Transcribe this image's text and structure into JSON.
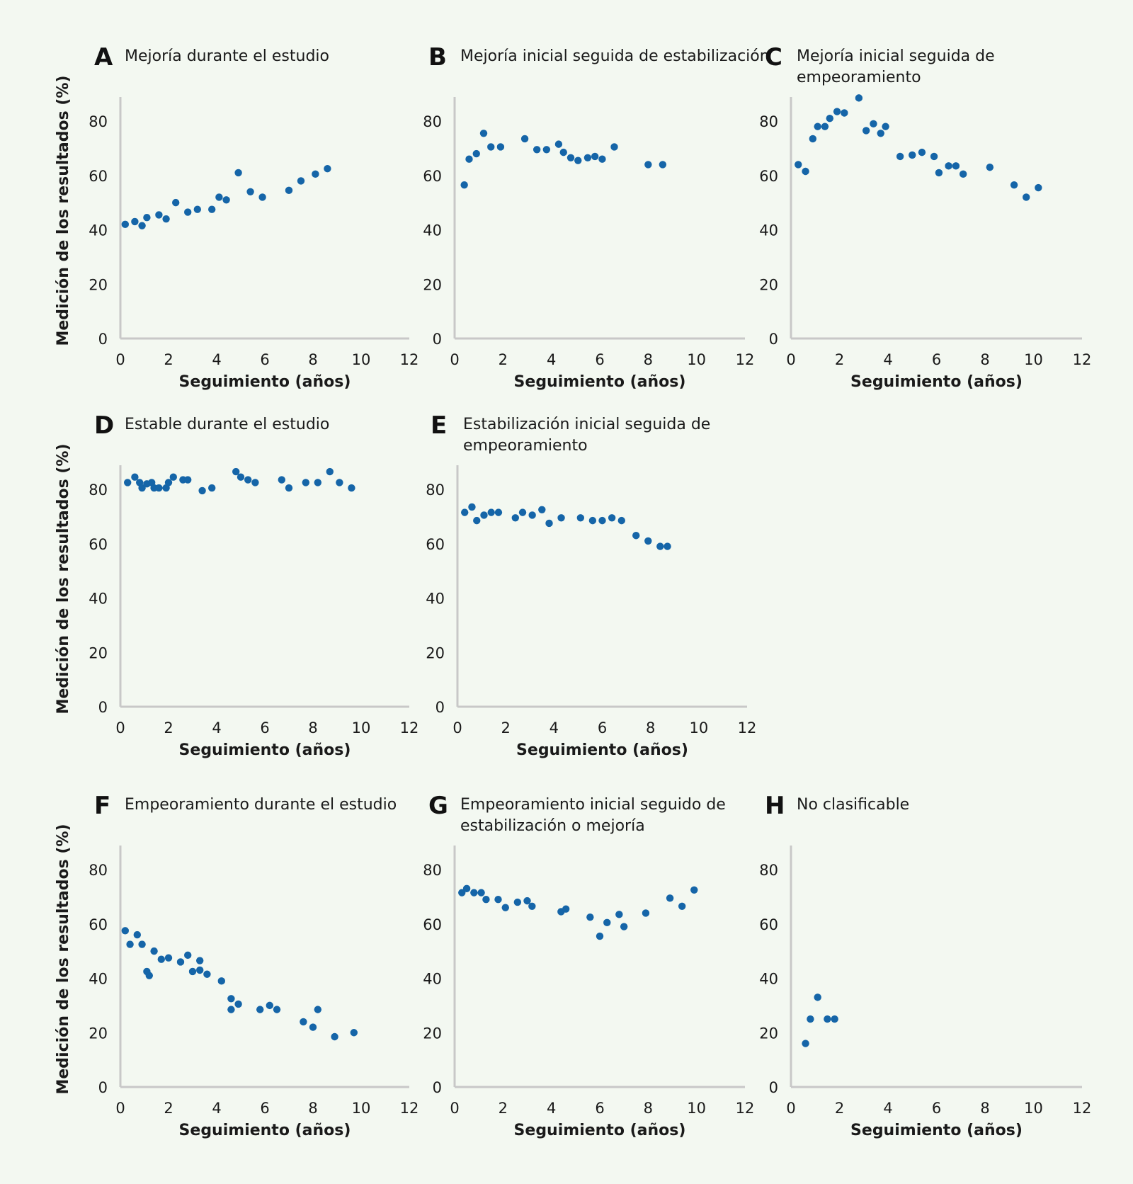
{
  "figure": {
    "background": "#f3f8f1",
    "point_color": "#1565a8"
  },
  "chart_data": [
    {
      "id": "A",
      "letter": "A",
      "type": "scatter",
      "title_lines": [
        "Mejoría durante el estudio"
      ],
      "xlabel": "Seguimiento (años)",
      "ylabel": "Medición de los resultados (%)",
      "xlim": [
        0,
        12
      ],
      "ylim": [
        0,
        88
      ],
      "xticks": [
        0,
        2,
        4,
        6,
        8,
        10,
        12
      ],
      "yticks": [
        0,
        20,
        40,
        60,
        80
      ],
      "points": [
        [
          0.2,
          42
        ],
        [
          0.6,
          43
        ],
        [
          0.9,
          41.5
        ],
        [
          1.1,
          44.5
        ],
        [
          1.6,
          45.5
        ],
        [
          1.9,
          44
        ],
        [
          2.3,
          50
        ],
        [
          2.8,
          46.5
        ],
        [
          3.2,
          47.5
        ],
        [
          3.8,
          47.5
        ],
        [
          4.1,
          52
        ],
        [
          4.4,
          51
        ],
        [
          4.9,
          61
        ],
        [
          5.4,
          54
        ],
        [
          5.9,
          52
        ],
        [
          7.0,
          54.5
        ],
        [
          7.5,
          58
        ],
        [
          8.1,
          60.5
        ],
        [
          8.6,
          62.5
        ]
      ]
    },
    {
      "id": "B",
      "letter": "B",
      "type": "scatter",
      "title_lines": [
        "Mejoría inicial seguida de estabilización"
      ],
      "xlabel": "Seguimiento (años)",
      "ylabel": "",
      "xlim": [
        0,
        12
      ],
      "ylim": [
        0,
        88
      ],
      "xticks": [
        0,
        2,
        4,
        6,
        8,
        10,
        12
      ],
      "yticks": [
        0,
        20,
        40,
        60,
        80
      ],
      "points": [
        [
          0.4,
          56.5
        ],
        [
          0.6,
          66
        ],
        [
          0.9,
          68
        ],
        [
          1.2,
          75.5
        ],
        [
          1.5,
          70.5
        ],
        [
          1.9,
          70.5
        ],
        [
          2.9,
          73.5
        ],
        [
          3.4,
          69.5
        ],
        [
          3.8,
          69.5
        ],
        [
          4.3,
          71.5
        ],
        [
          4.5,
          68.5
        ],
        [
          4.8,
          66.5
        ],
        [
          5.1,
          65.5
        ],
        [
          5.5,
          66.5
        ],
        [
          5.8,
          67
        ],
        [
          6.1,
          66
        ],
        [
          6.6,
          70.5
        ],
        [
          8.0,
          64
        ],
        [
          8.6,
          64
        ]
      ]
    },
    {
      "id": "C",
      "letter": "C",
      "type": "scatter",
      "title_lines": [
        "Mejoría inicial seguida de",
        "empeoramiento"
      ],
      "xlabel": "Seguimiento (años)",
      "ylabel": "",
      "xlim": [
        0,
        12
      ],
      "ylim": [
        0,
        88
      ],
      "xticks": [
        0,
        2,
        4,
        6,
        8,
        10,
        12
      ],
      "yticks": [
        0,
        20,
        40,
        60,
        80
      ],
      "points": [
        [
          0.3,
          64
        ],
        [
          0.6,
          61.5
        ],
        [
          0.9,
          73.5
        ],
        [
          1.1,
          78
        ],
        [
          1.4,
          78
        ],
        [
          1.6,
          81
        ],
        [
          1.9,
          83.5
        ],
        [
          2.2,
          83
        ],
        [
          2.8,
          88.5
        ],
        [
          3.1,
          76.5
        ],
        [
          3.4,
          79
        ],
        [
          3.7,
          75.5
        ],
        [
          3.9,
          78
        ],
        [
          4.5,
          67
        ],
        [
          5.0,
          67.5
        ],
        [
          5.4,
          68.5
        ],
        [
          5.9,
          67
        ],
        [
          6.1,
          61
        ],
        [
          6.5,
          63.5
        ],
        [
          6.8,
          63.5
        ],
        [
          7.1,
          60.5
        ],
        [
          8.2,
          63
        ],
        [
          9.2,
          56.5
        ],
        [
          9.7,
          52
        ],
        [
          10.2,
          55.5
        ]
      ]
    },
    {
      "id": "D",
      "letter": "D",
      "type": "scatter",
      "title_lines": [
        "Estable durante el estudio"
      ],
      "xlabel": "Seguimiento (años)",
      "ylabel": "Medición de los resultados (%)",
      "xlim": [
        0,
        12
      ],
      "ylim": [
        0,
        88
      ],
      "xticks": [
        0,
        2,
        4,
        6,
        8,
        10,
        12
      ],
      "yticks": [
        0,
        20,
        40,
        60,
        80
      ],
      "points": [
        [
          0.3,
          82.5
        ],
        [
          0.6,
          84.5
        ],
        [
          0.8,
          82.5
        ],
        [
          0.9,
          80.5
        ],
        [
          1.1,
          82
        ],
        [
          1.3,
          82.5
        ],
        [
          1.4,
          80.5
        ],
        [
          1.6,
          80.5
        ],
        [
          1.9,
          80.5
        ],
        [
          2.0,
          82.5
        ],
        [
          2.2,
          84.5
        ],
        [
          2.6,
          83.5
        ],
        [
          2.8,
          83.5
        ],
        [
          3.4,
          79.5
        ],
        [
          3.8,
          80.5
        ],
        [
          4.8,
          86.5
        ],
        [
          5.0,
          84.5
        ],
        [
          5.3,
          83.5
        ],
        [
          5.6,
          82.5
        ],
        [
          6.7,
          83.5
        ],
        [
          7.0,
          80.5
        ],
        [
          7.7,
          82.5
        ],
        [
          8.2,
          82.5
        ],
        [
          8.7,
          86.5
        ],
        [
          9.1,
          82.5
        ],
        [
          9.6,
          80.5
        ]
      ]
    },
    {
      "id": "E",
      "letter": "E",
      "type": "scatter",
      "title_lines": [
        "Estabilización inicial seguida de",
        "empeoramiento"
      ],
      "xlabel": "Seguimiento (años)",
      "ylabel": "",
      "xlim": [
        0,
        12
      ],
      "ylim": [
        0,
        88
      ],
      "xticks": [
        0,
        2,
        4,
        6,
        8,
        10,
        12
      ],
      "yticks": [
        0,
        20,
        40,
        60,
        80
      ],
      "points": [
        [
          0.3,
          71.5
        ],
        [
          0.6,
          73.5
        ],
        [
          0.8,
          68.5
        ],
        [
          1.1,
          70.5
        ],
        [
          1.4,
          71.5
        ],
        [
          1.7,
          71.5
        ],
        [
          2.4,
          69.5
        ],
        [
          2.7,
          71.5
        ],
        [
          3.1,
          70.5
        ],
        [
          3.5,
          72.5
        ],
        [
          3.8,
          67.5
        ],
        [
          4.3,
          69.5
        ],
        [
          5.1,
          69.5
        ],
        [
          5.6,
          68.5
        ],
        [
          6.0,
          68.5
        ],
        [
          6.4,
          69.5
        ],
        [
          6.8,
          68.5
        ],
        [
          7.4,
          63
        ],
        [
          7.9,
          61
        ],
        [
          8.4,
          59
        ],
        [
          8.7,
          59
        ]
      ]
    },
    {
      "id": "F",
      "letter": "F",
      "type": "scatter",
      "title_lines": [
        "Empeoramiento durante el estudio"
      ],
      "xlabel": "Seguimiento (años)",
      "ylabel": "Medición de los resultados (%)",
      "xlim": [
        0,
        12
      ],
      "ylim": [
        0,
        88
      ],
      "xticks": [
        0,
        2,
        4,
        6,
        8,
        10,
        12
      ],
      "yticks": [
        0,
        20,
        40,
        60,
        80
      ],
      "points": [
        [
          0.2,
          57.5
        ],
        [
          0.4,
          52.5
        ],
        [
          0.7,
          56
        ],
        [
          0.9,
          52.5
        ],
        [
          1.1,
          42.5
        ],
        [
          1.2,
          41
        ],
        [
          1.4,
          50
        ],
        [
          1.7,
          47
        ],
        [
          2.0,
          47.5
        ],
        [
          2.5,
          46
        ],
        [
          2.8,
          48.5
        ],
        [
          3.0,
          42.5
        ],
        [
          3.3,
          46.5
        ],
        [
          3.3,
          43
        ],
        [
          3.6,
          41.5
        ],
        [
          4.2,
          39
        ],
        [
          4.6,
          32.5
        ],
        [
          4.6,
          28.5
        ],
        [
          4.9,
          30.5
        ],
        [
          5.8,
          28.5
        ],
        [
          6.2,
          30
        ],
        [
          6.5,
          28.5
        ],
        [
          7.6,
          24
        ],
        [
          8.0,
          22
        ],
        [
          8.2,
          28.5
        ],
        [
          8.9,
          18.5
        ],
        [
          9.7,
          20
        ]
      ]
    },
    {
      "id": "G",
      "letter": "G",
      "type": "scatter",
      "title_lines": [
        "Empeoramiento inicial seguido de",
        "estabilización o mejoría"
      ],
      "xlabel": "Seguimiento (años)",
      "ylabel": "",
      "xlim": [
        0,
        12
      ],
      "ylim": [
        0,
        88
      ],
      "xticks": [
        0,
        2,
        4,
        6,
        8,
        10,
        12
      ],
      "yticks": [
        0,
        20,
        40,
        60,
        80
      ],
      "points": [
        [
          0.3,
          71.5
        ],
        [
          0.5,
          73
        ],
        [
          0.8,
          71.5
        ],
        [
          1.1,
          71.5
        ],
        [
          1.3,
          69
        ],
        [
          1.8,
          69
        ],
        [
          2.1,
          66
        ],
        [
          2.6,
          68
        ],
        [
          3.0,
          68.5
        ],
        [
          3.2,
          66.5
        ],
        [
          4.4,
          64.5
        ],
        [
          4.6,
          65.5
        ],
        [
          5.6,
          62.5
        ],
        [
          6.0,
          55.5
        ],
        [
          6.3,
          60.5
        ],
        [
          6.8,
          63.5
        ],
        [
          7.0,
          59
        ],
        [
          7.9,
          64
        ],
        [
          8.9,
          69.5
        ],
        [
          9.4,
          66.5
        ],
        [
          9.9,
          72.5
        ]
      ]
    },
    {
      "id": "H",
      "letter": "H",
      "type": "scatter",
      "title_lines": [
        "No clasificable"
      ],
      "xlabel": "Seguimiento (años)",
      "ylabel": "",
      "xlim": [
        0,
        12
      ],
      "ylim": [
        0,
        88
      ],
      "xticks": [
        0,
        2,
        4,
        6,
        8,
        10,
        12
      ],
      "yticks": [
        0,
        20,
        40,
        60,
        80
      ],
      "points": [
        [
          0.6,
          16
        ],
        [
          0.8,
          25
        ],
        [
          1.1,
          33
        ],
        [
          1.5,
          25
        ],
        [
          1.8,
          25
        ]
      ]
    }
  ]
}
